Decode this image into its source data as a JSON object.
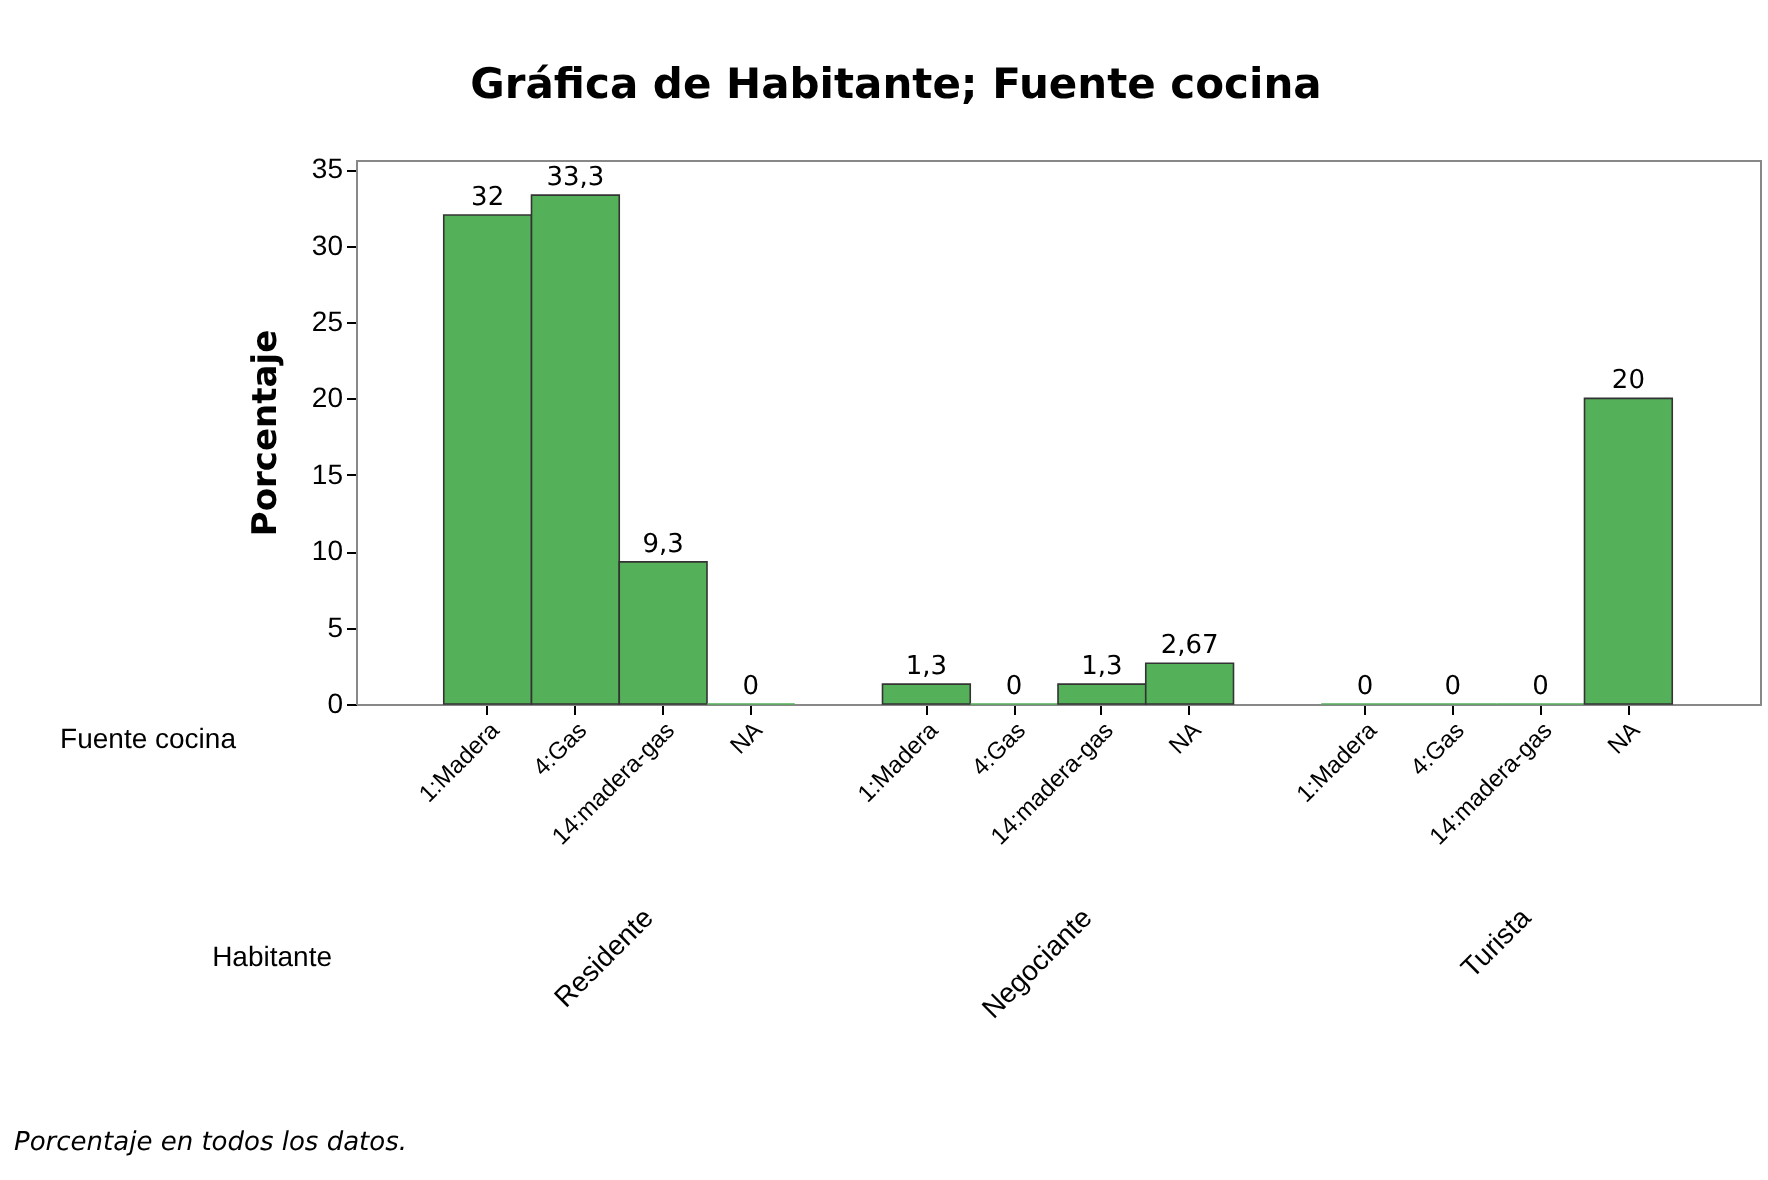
{
  "chart_data": {
    "type": "bar",
    "title": "Gráfica de Habitante; Fuente cocina",
    "ylabel": "Porcentaje",
    "categories": [
      "1:Madera",
      "4:Gas",
      "14:madera-gas",
      "NA",
      null,
      "1:Madera",
      "4:Gas",
      "14:madera-gas",
      "NA",
      null,
      "1:Madera",
      "4:Gas",
      "14:madera-gas",
      "NA"
    ],
    "values": [
      32,
      33.3,
      9.3,
      0,
      null,
      1.3,
      0,
      1.3,
      2.67,
      null,
      0,
      0,
      0,
      20
    ],
    "value_labels": [
      "32",
      "33,3",
      "9,3",
      "0",
      null,
      "1,3",
      "0",
      "1,3",
      "2,67",
      null,
      "0",
      "0",
      "0",
      "20"
    ],
    "color": "#55b05a",
    "ylim": [
      0,
      35.6
    ],
    "yticks": [
      0,
      5,
      10,
      15,
      20,
      25,
      30,
      35
    ],
    "grid": false,
    "annotations": [
      "Fuente cocina",
      "Habitante",
      "Residente",
      "Negociante",
      "Turista",
      "Porcentaje en todos los datos."
    ]
  }
}
